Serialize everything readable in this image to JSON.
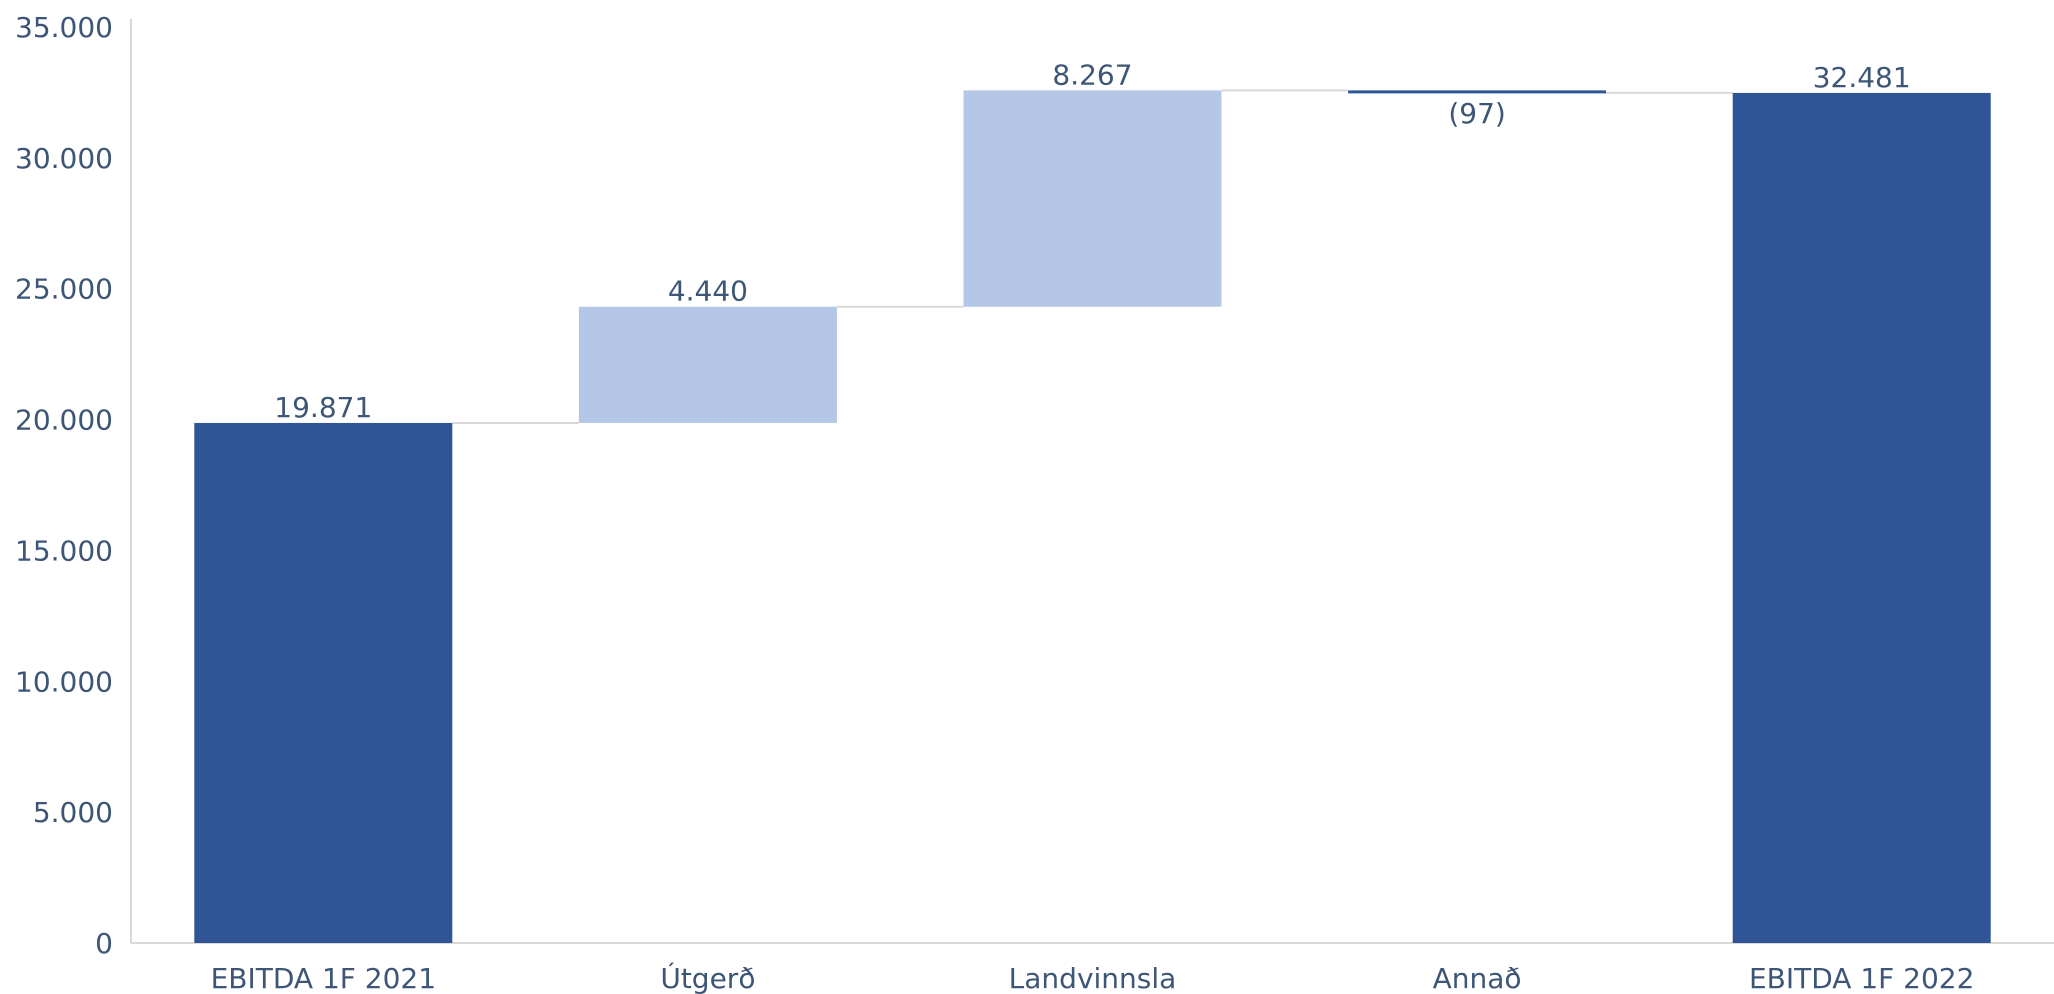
{
  "chart_data": {
    "type": "bar",
    "subtype": "waterfall",
    "categories": [
      "EBITDA 1F 2021",
      "Útgerð",
      "Landvinnsla",
      "Annað",
      "EBITDA 1F 2022"
    ],
    "values": [
      19871,
      4440,
      8267,
      -97,
      32481
    ],
    "kinds": [
      "total",
      "increase",
      "increase",
      "decrease",
      "total"
    ],
    "data_labels": [
      "19.871",
      "4.440",
      "8.267",
      "(97)",
      "32.481"
    ],
    "y_ticks": [
      0,
      5000,
      10000,
      15000,
      20000,
      25000,
      30000,
      35000
    ],
    "y_tick_labels": [
      "0",
      "5.000",
      "10.000",
      "15.000",
      "20.000",
      "25.000",
      "30.000",
      "35.000"
    ],
    "ylim": [
      0,
      35000
    ],
    "grid": false,
    "legend": "none",
    "colors": {
      "total": "#2f5596",
      "increase": "#b4c7e7",
      "decrease": "#2f5596",
      "connector": "#d9d9d9",
      "axis": "#d9d9d9",
      "text": "#3d5677"
    }
  }
}
